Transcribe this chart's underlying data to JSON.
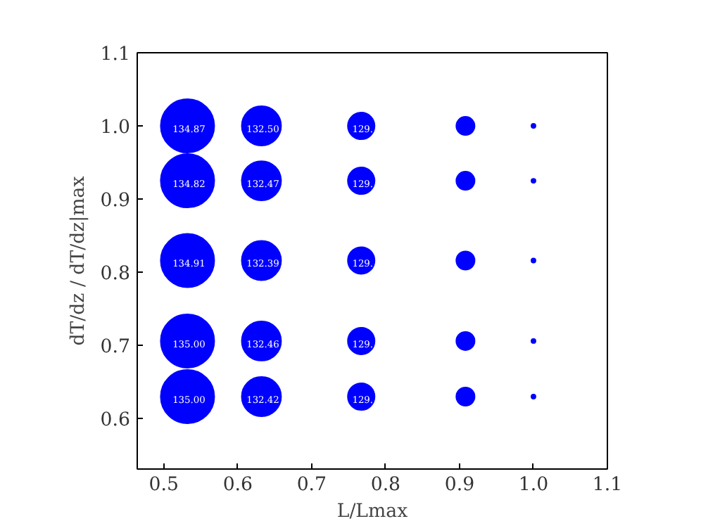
{
  "chart_data": {
    "type": "bubble",
    "xlabel": "L/Lmax",
    "ylabel": "dT/dz / dT/dz|max",
    "series": [
      {
        "color": "#0000ff",
        "x": [
          0.532,
          0.532,
          0.532,
          0.532,
          0.532,
          0.632,
          0.632,
          0.632,
          0.632,
          0.632,
          0.767,
          0.767,
          0.767,
          0.767,
          0.767,
          0.908,
          0.908,
          0.908,
          0.908,
          0.908,
          1.0,
          1.0,
          1.0,
          1.0,
          1.0
        ],
        "values": [
          1.0,
          0.925,
          0.816,
          0.706,
          0.63,
          1.0,
          0.925,
          0.816,
          0.706,
          0.63,
          1.0,
          0.925,
          0.816,
          0.706,
          0.63,
          1.0,
          0.925,
          0.816,
          0.706,
          0.63,
          1.0,
          0.925,
          0.816,
          0.706,
          0.63
        ],
        "sizes": [
          1,
          1,
          1,
          1,
          1,
          0.54,
          0.54,
          0.54,
          0.54,
          0.54,
          0.25,
          0.25,
          0.25,
          0.25,
          0.25,
          0.117,
          0.117,
          0.117,
          0.117,
          0.117,
          0.006,
          0.006,
          0.006,
          0.006,
          0.006
        ]
      }
    ],
    "annotations": [
      {
        "text": "134.87",
        "x": 0.532,
        "y": 1.0
      },
      {
        "text": "134.82",
        "x": 0.532,
        "y": 0.925
      },
      {
        "text": "134.91",
        "x": 0.532,
        "y": 0.816
      },
      {
        "text": "135.00",
        "x": 0.532,
        "y": 0.706
      },
      {
        "text": "135.00",
        "x": 0.532,
        "y": 0.63
      },
      {
        "text": "132.50",
        "x": 0.632,
        "y": 1.0
      },
      {
        "text": "132.47",
        "x": 0.632,
        "y": 0.925
      },
      {
        "text": "132.39",
        "x": 0.632,
        "y": 0.816
      },
      {
        "text": "132.46",
        "x": 0.632,
        "y": 0.706
      },
      {
        "text": "132.42",
        "x": 0.632,
        "y": 0.63
      },
      {
        "text": "129.",
        "x": 0.767,
        "y": 1.0
      },
      {
        "text": "129.",
        "x": 0.767,
        "y": 0.925
      },
      {
        "text": "129.",
        "x": 0.767,
        "y": 0.816
      },
      {
        "text": "129.",
        "x": 0.767,
        "y": 0.706
      },
      {
        "text": "129.",
        "x": 0.767,
        "y": 0.63
      }
    ],
    "xlim": [
      0.464,
      1.1
    ],
    "xticks": [
      0.5,
      0.6,
      0.7,
      0.8,
      0.9,
      {
        "value": 1.0,
        "label": "1.0"
      },
      1.1
    ],
    "ylim": [
      0.531,
      1.1
    ],
    "yticks": [
      0.6,
      0.7,
      0.8,
      0.9,
      {
        "value": 1.0,
        "label": "1.0"
      },
      1.1
    ],
    "grid": false
  }
}
